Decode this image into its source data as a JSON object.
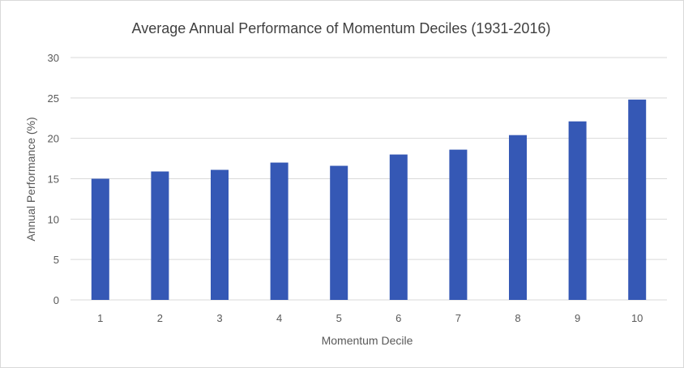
{
  "chart_data": {
    "type": "bar",
    "title": "Average Annual Performance of Momentum Deciles (1931-2016)",
    "xlabel": "Momentum Decile",
    "ylabel": "Annual Performance (%)",
    "categories": [
      "1",
      "2",
      "3",
      "4",
      "5",
      "6",
      "7",
      "8",
      "9",
      "10"
    ],
    "values": [
      15.0,
      15.9,
      16.1,
      17.0,
      16.6,
      18.0,
      18.6,
      20.4,
      22.1,
      24.8
    ],
    "ylim": [
      0,
      30
    ],
    "yticks": [
      "0",
      "5",
      "10",
      "15",
      "20",
      "25",
      "30"
    ],
    "grid": true,
    "legend": "none",
    "colors": {
      "bar": "#3558b5",
      "grid": "#d9d9d9",
      "text": "#595959",
      "title": "#404040"
    }
  }
}
